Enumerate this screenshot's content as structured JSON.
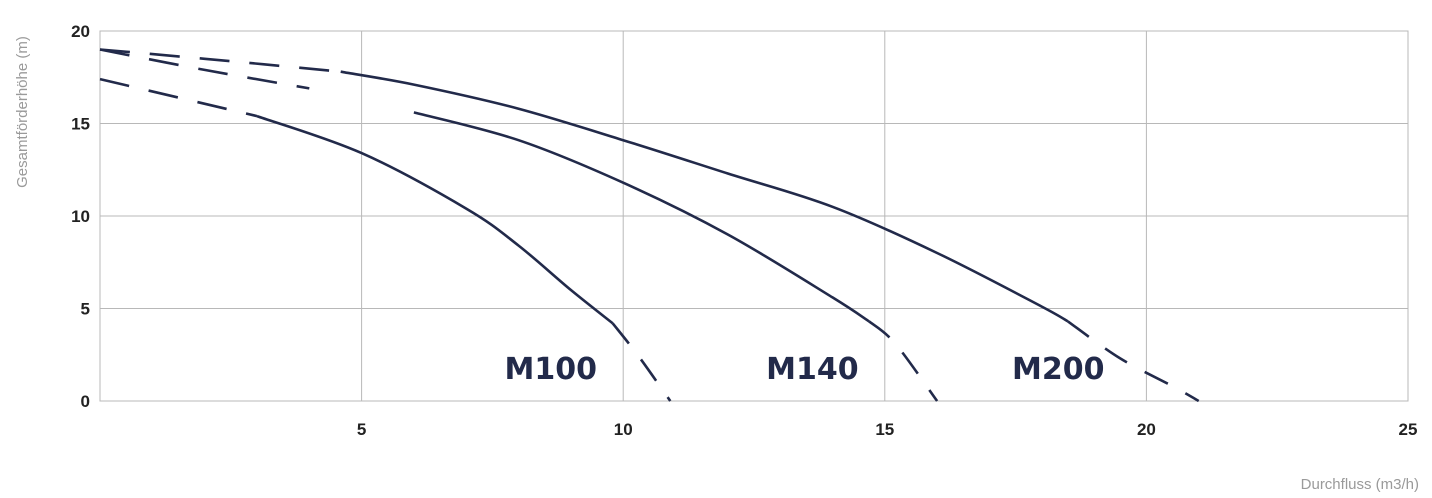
{
  "chart_data": {
    "type": "line",
    "xlabel": "Durchfluss (m3/h)",
    "ylabel": "Gesamtförderhöhe (m)",
    "xlim": [
      0,
      25
    ],
    "ylim": [
      0,
      20
    ],
    "x_ticks": [
      5,
      10,
      15,
      20,
      25
    ],
    "y_ticks": [
      0,
      5,
      10,
      15,
      20
    ],
    "grid": true,
    "line_color": "#222a4a",
    "series": [
      {
        "name": "M100",
        "x": [
          0,
          3,
          5,
          7,
          8,
          9,
          9.8,
          10.3,
          10.9
        ],
        "y": [
          17.4,
          15.4,
          13.4,
          10.4,
          8.4,
          6.0,
          4.2,
          2.4,
          0
        ],
        "solid_range": [
          3,
          9.8
        ]
      },
      {
        "name": "M140",
        "x": [
          0,
          2,
          4,
          6,
          8,
          10,
          12,
          14,
          14.7,
          15.2,
          16.0
        ],
        "y": [
          19.0,
          17.9,
          16.9,
          15.6,
          14.1,
          11.8,
          9.0,
          5.6,
          4.3,
          3.1,
          0
        ],
        "solid_range": [
          5,
          14.7
        ]
      },
      {
        "name": "M200",
        "x": [
          0,
          2,
          4.6,
          6,
          8,
          10,
          12,
          14,
          16,
          18,
          18.5,
          19.5,
          20.5,
          21.0
        ],
        "y": [
          19.0,
          18.5,
          17.8,
          17.1,
          15.8,
          14.1,
          12.3,
          10.5,
          8.0,
          5.1,
          4.3,
          2.3,
          0.8,
          0
        ],
        "solid_range": [
          4.6,
          18.5
        ]
      }
    ]
  }
}
